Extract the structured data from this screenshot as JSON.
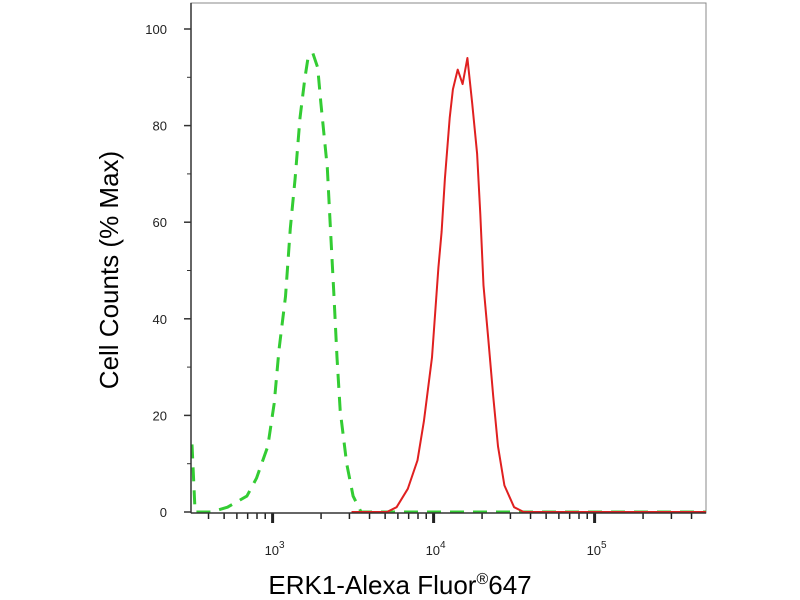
{
  "chart_data": {
    "type": "line",
    "title": "",
    "xlabel": "ERK1-Alexa Fluor",
    "xlabel_mark": "®",
    "xlabel_suffix": "647",
    "ylabel": "Cell Counts (% Max)",
    "xscale": "log",
    "xlim": [
      316,
      501187
    ],
    "ylim": [
      0,
      100
    ],
    "grid": false,
    "yticks": [
      0,
      20,
      40,
      60,
      80,
      100
    ],
    "xticks": [
      {
        "base": "10",
        "exp": "3",
        "value": 1000
      },
      {
        "base": "10",
        "exp": "4",
        "value": 10000
      },
      {
        "base": "10",
        "exp": "5",
        "value": 100000
      }
    ],
    "series": [
      {
        "color": "#33cc33",
        "style": "dashed",
        "x": [
          316,
          330,
          417,
          525,
          692,
          794,
          933,
          1023,
          1096,
          1202,
          1288,
          1380,
          1479,
          1585,
          1660,
          1778,
          1905,
          1995,
          2188,
          2291,
          2399,
          2512,
          2630,
          2884,
          3162,
          3548,
          501187
        ],
        "y": [
          14,
          0,
          0,
          1,
          3.3,
          7,
          13.6,
          22.5,
          33.6,
          44.6,
          58.7,
          69,
          81.6,
          89.7,
          94,
          95,
          92,
          84.6,
          71.3,
          58,
          45.4,
          32,
          21,
          10,
          3.3,
          0,
          0
        ]
      },
      {
        "color": "#e02020",
        "style": "solid",
        "x": [
          3090,
          5129,
          5888,
          6918,
          7943,
          8710,
          9772,
          10715,
          11220,
          11749,
          12589,
          13183,
          14125,
          15136,
          16218,
          17378,
          18621,
          19498,
          20417,
          21878,
          23442,
          25119,
          27542,
          31623,
          36308,
          501187
        ],
        "y": [
          0,
          0,
          1,
          4.8,
          10.7,
          18.8,
          32,
          50.6,
          58,
          69,
          81.6,
          87.5,
          91.6,
          88.6,
          94,
          84.6,
          74.2,
          61.7,
          46.9,
          35.8,
          24,
          13.6,
          5.5,
          1,
          0,
          0
        ]
      }
    ]
  }
}
